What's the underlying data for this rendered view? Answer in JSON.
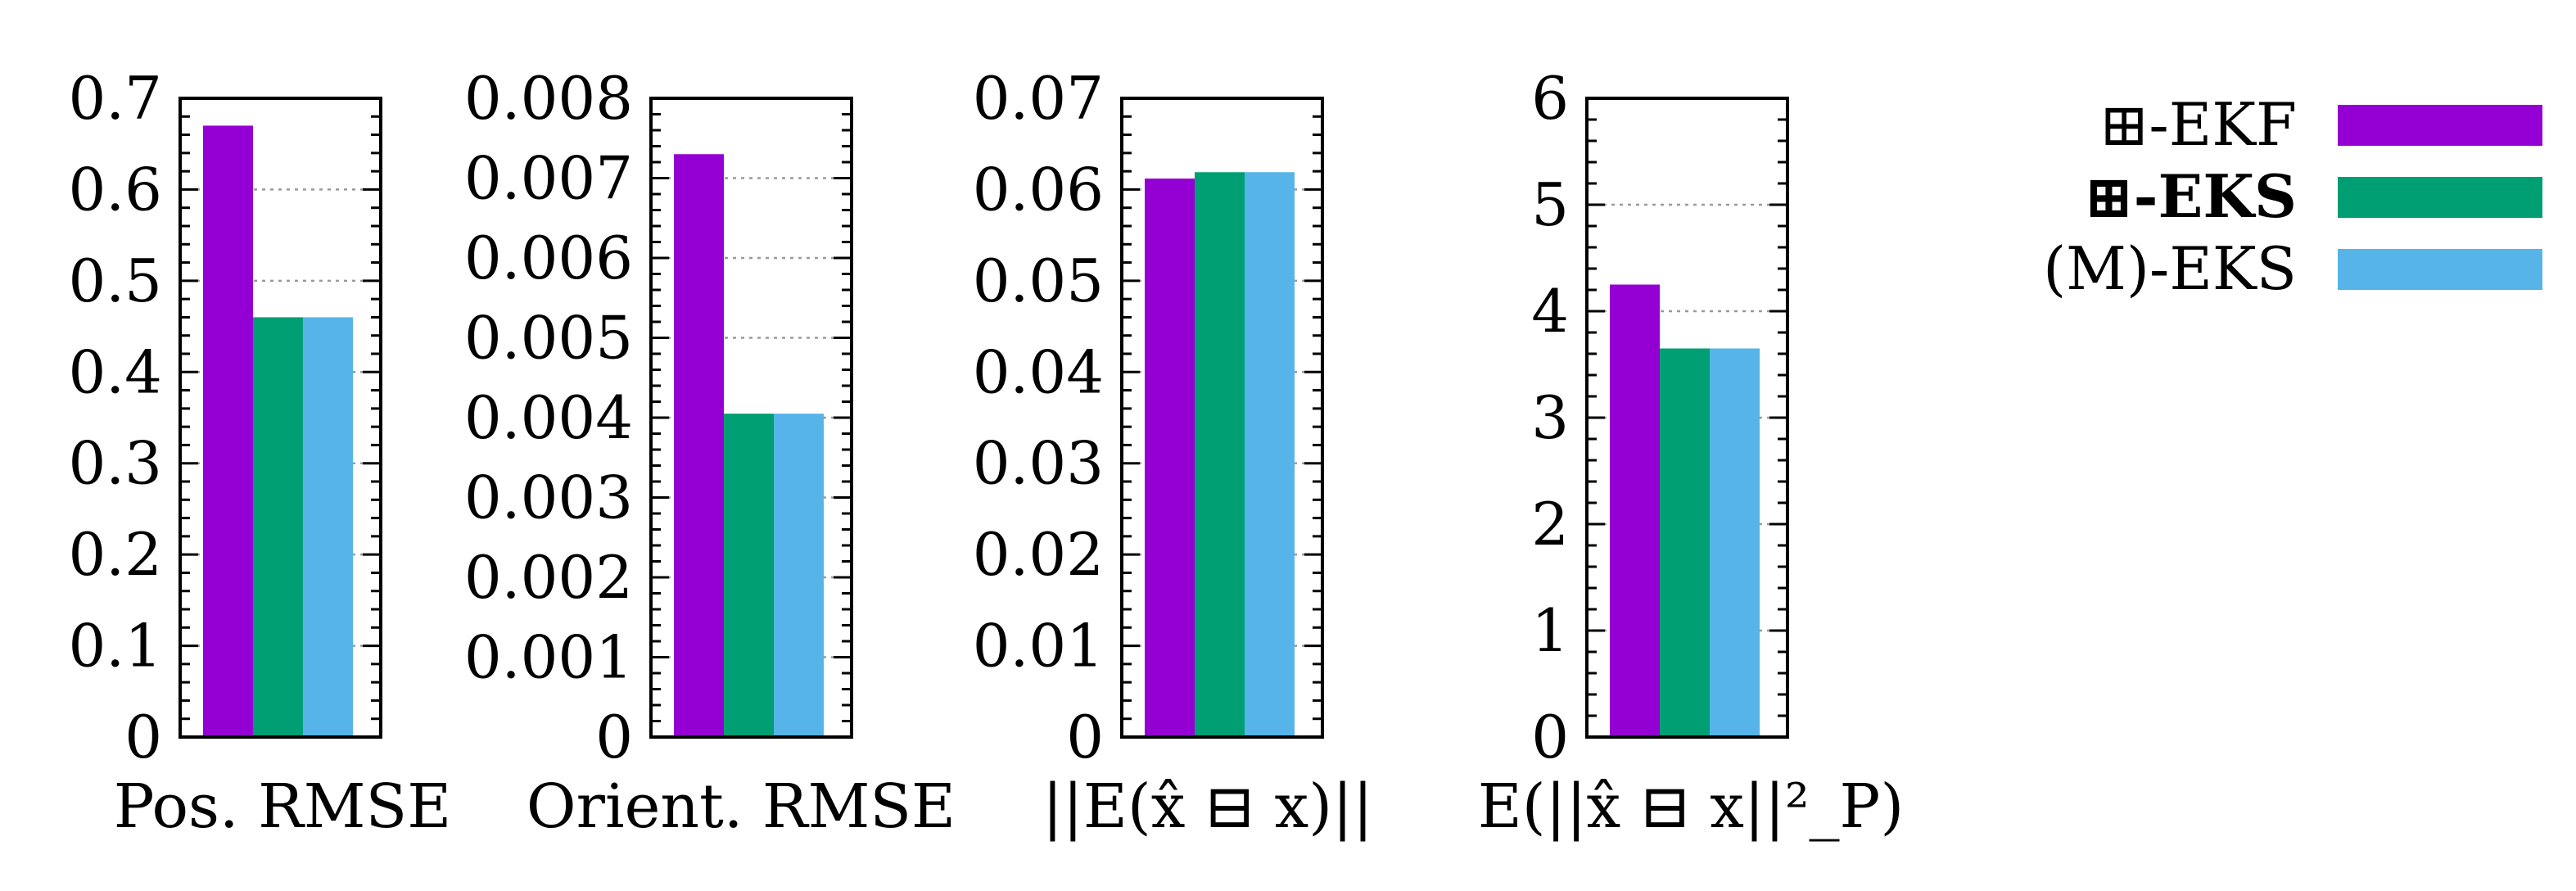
{
  "colors": {
    "ekf": "#9400d3",
    "eks": "#009e73",
    "meks": "#56b4e9"
  },
  "legend": [
    {
      "label": "⊞-EKF",
      "bold": false,
      "color": "#9400d3"
    },
    {
      "label": "⊞-EKS",
      "bold": true,
      "color": "#009e73"
    },
    {
      "label": "(M)-EKS",
      "bold": false,
      "color": "#56b4e9"
    }
  ],
  "chart_data": [
    {
      "type": "bar",
      "xlabel": "Pos. RMSE",
      "ylim": [
        0,
        0.7
      ],
      "yticks": [
        "0",
        "0.1",
        "0.2",
        "0.3",
        "0.4",
        "0.5",
        "0.6",
        "0.7"
      ],
      "ytick_values": [
        0,
        0.1,
        0.2,
        0.3,
        0.4,
        0.5,
        0.6,
        0.7
      ],
      "grid": true,
      "values": [
        0.67,
        0.46,
        0.46
      ]
    },
    {
      "type": "bar",
      "xlabel": "Orient. RMSE",
      "ylim": [
        0,
        0.008
      ],
      "yticks": [
        "0",
        "0.001",
        "0.002",
        "0.003",
        "0.004",
        "0.005",
        "0.006",
        "0.007",
        "0.008"
      ],
      "ytick_values": [
        0,
        0.001,
        0.002,
        0.003,
        0.004,
        0.005,
        0.006,
        0.007,
        0.008
      ],
      "grid": true,
      "values": [
        0.0073,
        0.00405,
        0.00405
      ]
    },
    {
      "type": "bar",
      "xlabel": "||E(x̂ ⊟ x)||",
      "ylim": [
        0,
        0.07
      ],
      "yticks": [
        "0",
        "0.01",
        "0.02",
        "0.03",
        "0.04",
        "0.05",
        "0.06",
        "0.07"
      ],
      "ytick_values": [
        0,
        0.01,
        0.02,
        0.03,
        0.04,
        0.05,
        0.06,
        0.07
      ],
      "grid": true,
      "values": [
        0.0612,
        0.0619,
        0.0619
      ]
    },
    {
      "type": "bar",
      "xlabel": "E(||x̂ ⊟ x||²_P)",
      "ylim": [
        0,
        6
      ],
      "yticks": [
        "0",
        "1",
        "2",
        "3",
        "4",
        "5",
        "6"
      ],
      "ytick_values": [
        0,
        1,
        2,
        3,
        4,
        5,
        6
      ],
      "grid": true,
      "values": [
        4.25,
        3.65,
        3.65
      ]
    }
  ]
}
